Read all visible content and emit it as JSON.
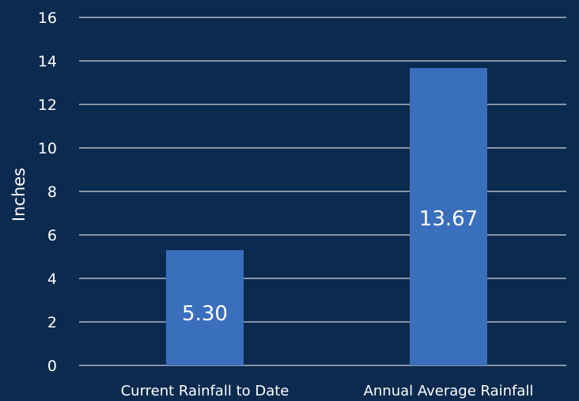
{
  "chart_data": {
    "type": "bar",
    "categories": [
      "Current Rainfall to Date",
      "Annual Average Rainfall"
    ],
    "values": [
      5.3,
      13.67
    ],
    "value_labels": [
      "5.30",
      "13.67"
    ],
    "ylabel": "Inches",
    "ylim": [
      0,
      16
    ],
    "yticks": [
      0,
      2,
      4,
      6,
      8,
      10,
      12,
      14,
      16
    ],
    "grid": true,
    "legend": "none",
    "colors": {
      "background": "#0b2a4f",
      "bar": "#3a6fbe",
      "text": "#ffffff",
      "grid": "#ffffff"
    }
  }
}
